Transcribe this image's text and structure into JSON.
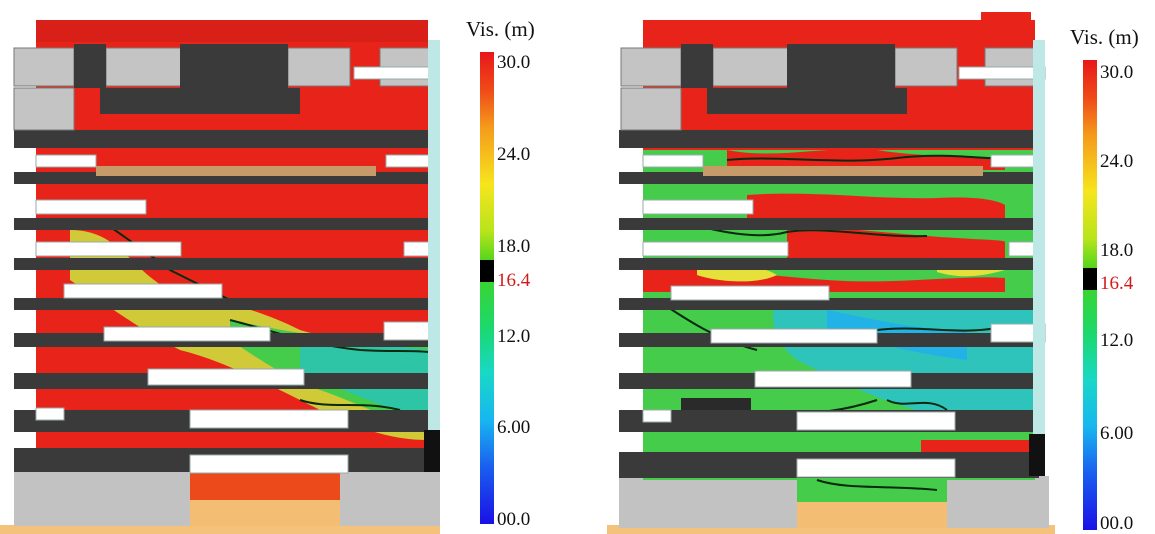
{
  "panels": [
    {
      "colorbar": {
        "title": "Vis. (m)",
        "ticks": [
          "30.0",
          "24.0",
          "18.0",
          "16.4",
          "12.0",
          "6.00",
          "00.0"
        ],
        "marker_value": "16.4",
        "marker_color": "#d21a1a"
      },
      "scene": "building-left"
    },
    {
      "colorbar": {
        "title": "Vis. (m)",
        "ticks": [
          "30.0",
          "24.0",
          "18.0",
          "16.4",
          "12.0",
          "6.00",
          "00.0"
        ],
        "marker_value": "16.4",
        "marker_color": "#d21a1a"
      },
      "scene": "building-right"
    }
  ]
}
